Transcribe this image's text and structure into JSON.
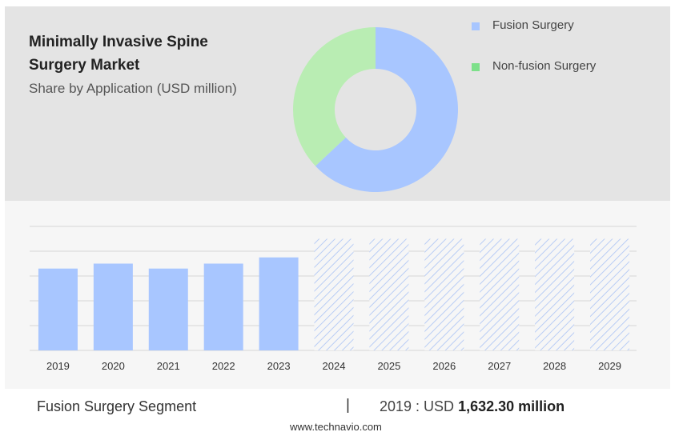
{
  "chart_data": [
    {
      "type": "pie",
      "title": "Minimally Invasive Spine Surgery Market",
      "subtitle": "Share by Application (USD million)",
      "categories": [
        "Fusion Surgery",
        "Non-fusion Surgery"
      ],
      "values": [
        63,
        37
      ],
      "colors": [
        "#a8c6ff",
        "#b9edb3"
      ],
      "donut": true,
      "legend_position": "top-right"
    },
    {
      "type": "bar",
      "categories": [
        "2019",
        "2020",
        "2021",
        "2022",
        "2023",
        "2024",
        "2025",
        "2026",
        "2027",
        "2028",
        "2029"
      ],
      "values": [
        66,
        70,
        66,
        70,
        75,
        null,
        null,
        null,
        null,
        null,
        null
      ],
      "forecast_values": [
        null,
        null,
        null,
        null,
        null,
        90,
        90,
        90,
        90,
        90,
        90
      ],
      "ylim": [
        0,
        100
      ],
      "grid": true,
      "bar_color": "#a8c6ff",
      "forecast_style": "hatched"
    }
  ],
  "footer": {
    "segment_label": "Fusion Surgery Segment",
    "separator": "|",
    "year_value_prefix": "2019 : USD",
    "year_value_bold": "1,632.30 million"
  },
  "source": "www.technavio.com"
}
